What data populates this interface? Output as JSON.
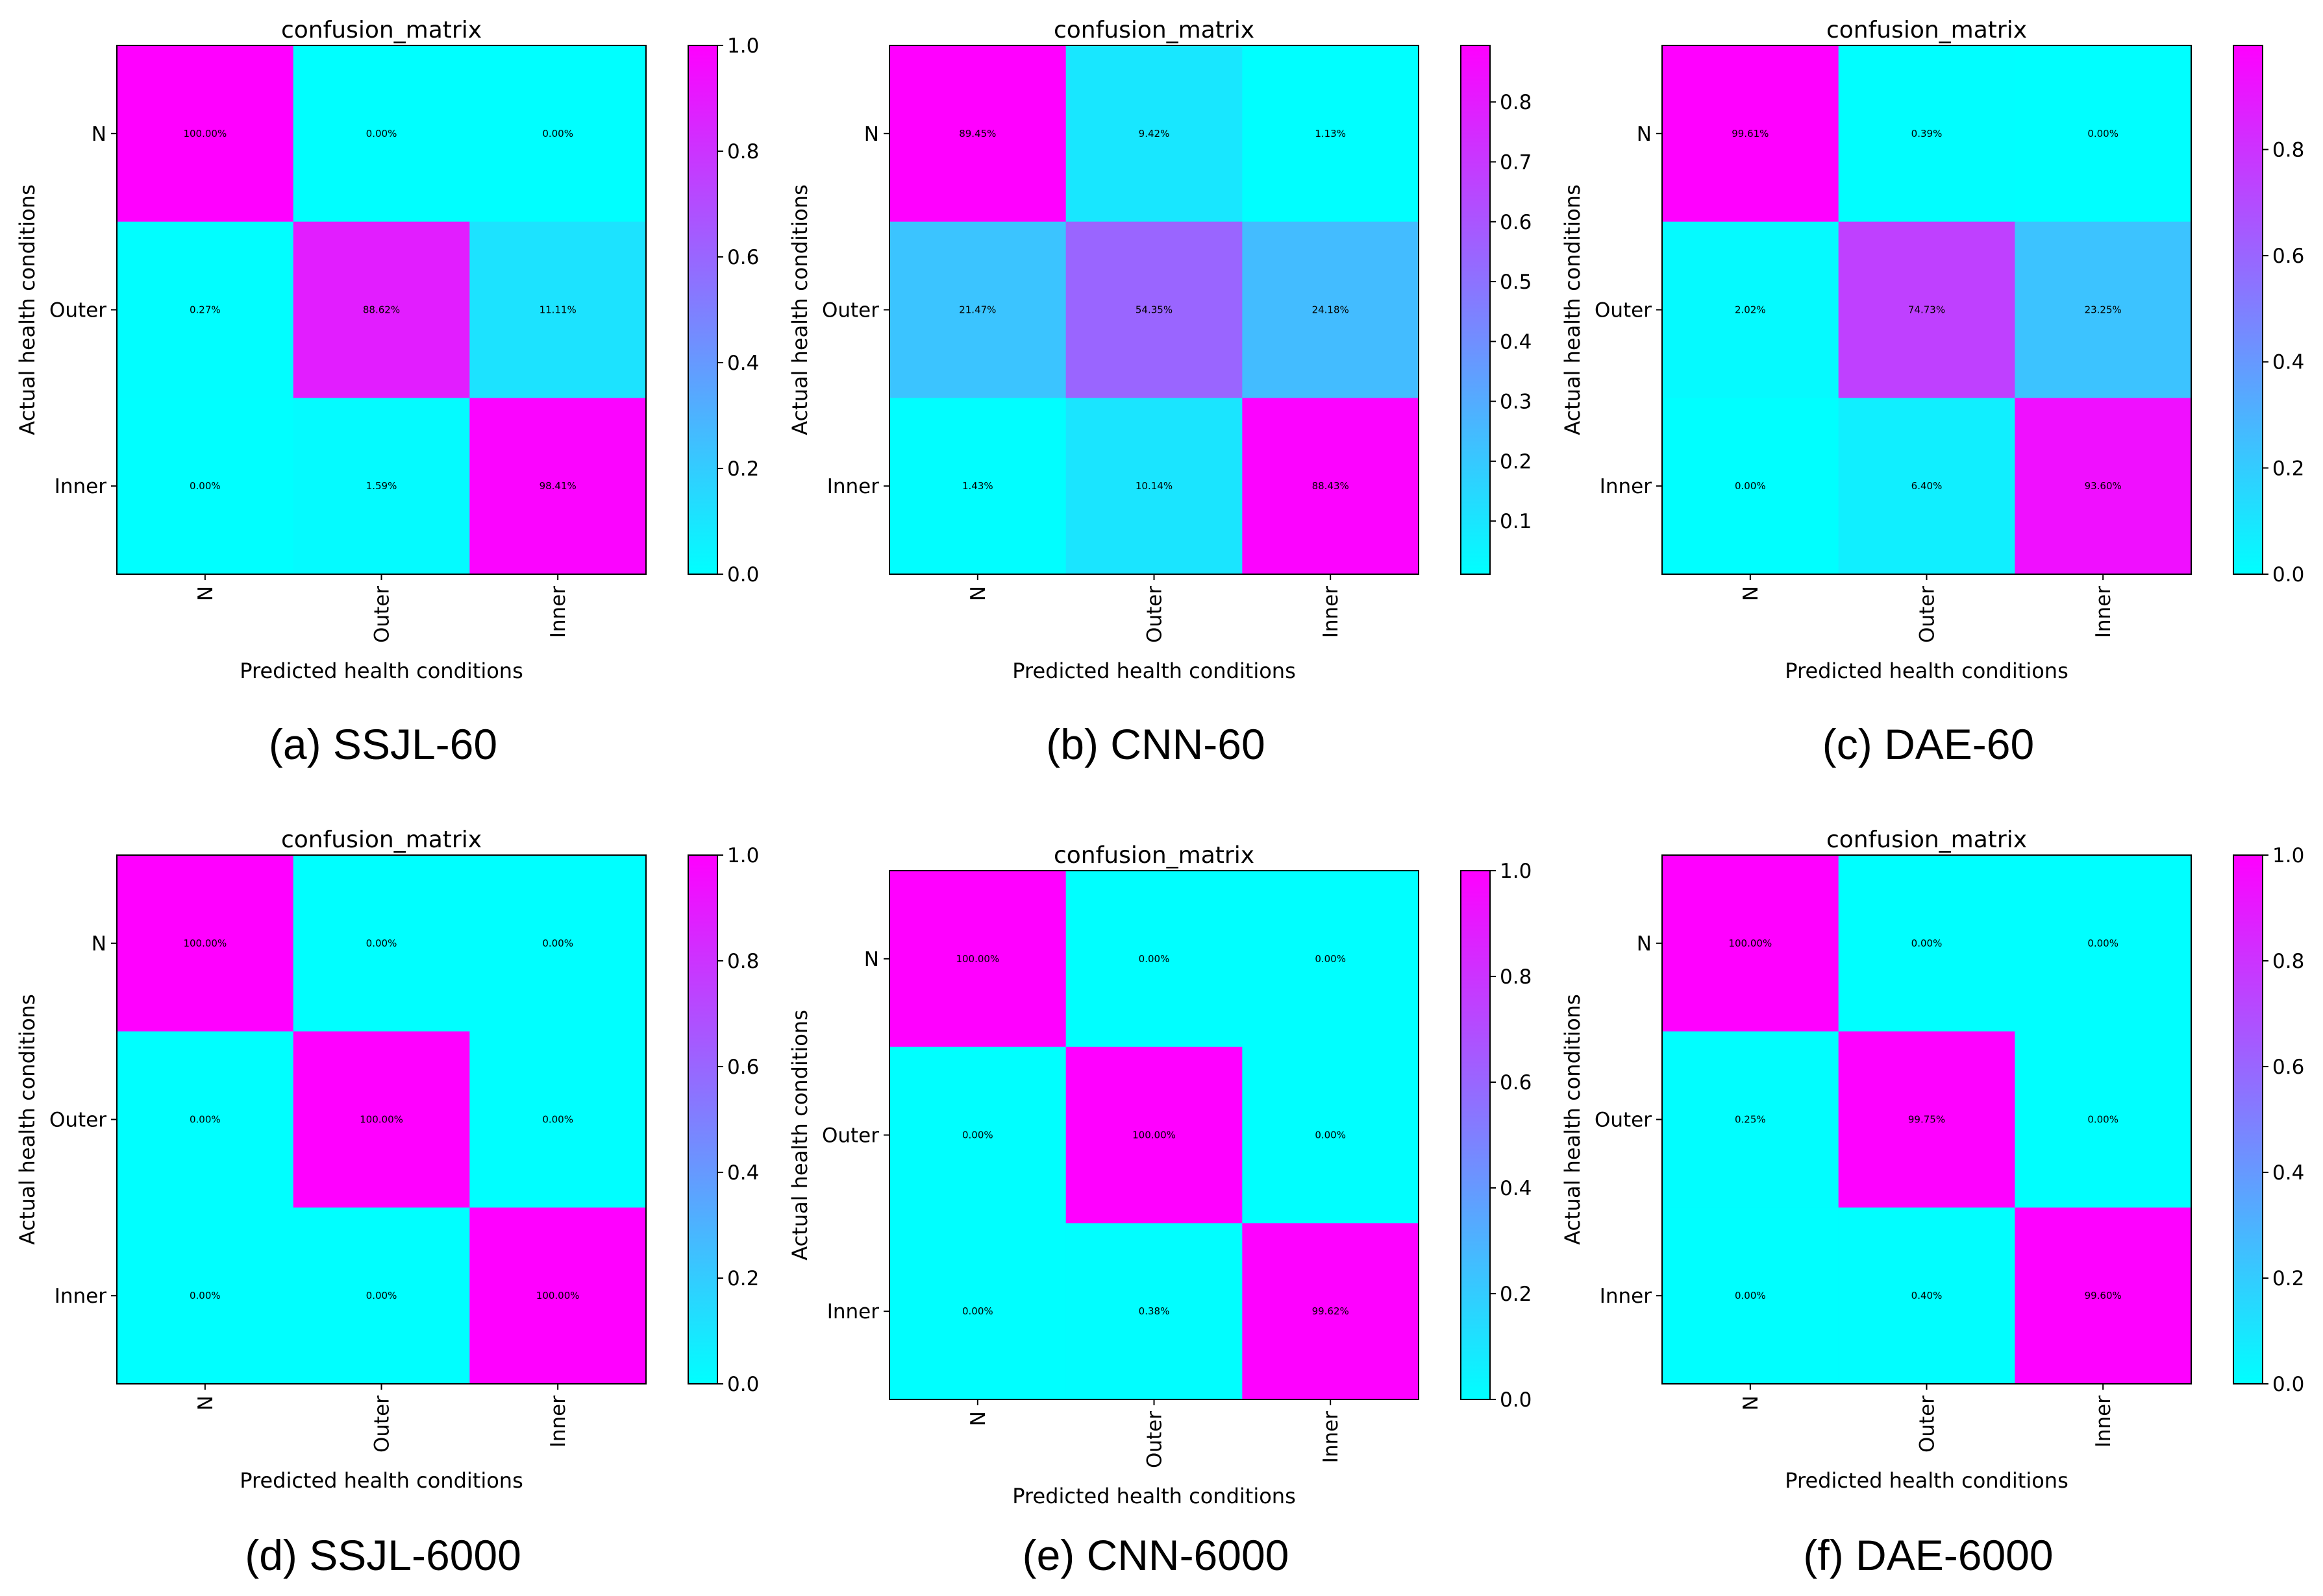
{
  "chart_data": [
    {
      "type": "heatmap",
      "title": "confusion_matrix",
      "caption": "(a) SSJL-60",
      "xlabel": "Predicted health conditions",
      "ylabel": "Actual health conditions",
      "rows": [
        "N",
        "Outer",
        "Inner"
      ],
      "cols": [
        "N",
        "Outer",
        "Inner"
      ],
      "values": [
        [
          1.0,
          0.0,
          0.0
        ],
        [
          0.0027,
          0.8862,
          0.1111
        ],
        [
          0.0,
          0.0159,
          0.9841
        ]
      ],
      "labels": [
        [
          "100.00%",
          "0.00%",
          "0.00%"
        ],
        [
          "0.27%",
          "88.62%",
          "11.11%"
        ],
        [
          "0.00%",
          "1.59%",
          "98.41%"
        ]
      ],
      "colorbar": {
        "range": [
          0.0,
          1.0
        ],
        "ticks": [
          "0.0",
          "0.2",
          "0.4",
          "0.6",
          "0.8",
          "1.0"
        ]
      }
    },
    {
      "type": "heatmap",
      "title": "confusion_matrix",
      "caption": "(b) CNN-60",
      "xlabel": "Predicted health conditions",
      "ylabel": "Actual health conditions",
      "rows": [
        "N",
        "Outer",
        "Inner"
      ],
      "cols": [
        "N",
        "Outer",
        "Inner"
      ],
      "values": [
        [
          0.8945,
          0.0942,
          0.0113
        ],
        [
          0.2147,
          0.5435,
          0.2418
        ],
        [
          0.0143,
          0.1014,
          0.8843
        ]
      ],
      "labels": [
        [
          "89.45%",
          "9.42%",
          "1.13%"
        ],
        [
          "21.47%",
          "54.35%",
          "24.18%"
        ],
        [
          "1.43%",
          "10.14%",
          "88.43%"
        ]
      ],
      "colorbar": {
        "range": [
          0.0113,
          0.8945
        ],
        "ticks": [
          "0.1",
          "0.2",
          "0.3",
          "0.4",
          "0.5",
          "0.6",
          "0.7",
          "0.8"
        ]
      }
    },
    {
      "type": "heatmap",
      "title": "confusion_matrix",
      "caption": "(c) DAE-60",
      "xlabel": "Predicted health conditions",
      "ylabel": "Actual health conditions",
      "rows": [
        "N",
        "Outer",
        "Inner"
      ],
      "cols": [
        "N",
        "Outer",
        "Inner"
      ],
      "values": [
        [
          0.9961,
          0.0039,
          0.0
        ],
        [
          0.0202,
          0.7473,
          0.2325
        ],
        [
          0.0,
          0.064,
          0.936
        ]
      ],
      "labels": [
        [
          "99.61%",
          "0.39%",
          "0.00%"
        ],
        [
          "2.02%",
          "74.73%",
          "23.25%"
        ],
        [
          "0.00%",
          "6.40%",
          "93.60%"
        ]
      ],
      "colorbar": {
        "range": [
          0.0,
          0.9961
        ],
        "ticks": [
          "0.0",
          "0.2",
          "0.4",
          "0.6",
          "0.8"
        ]
      }
    },
    {
      "type": "heatmap",
      "title": "confusion_matrix",
      "caption": "(d) SSJL-6000",
      "xlabel": "Predicted health conditions",
      "ylabel": "Actual health conditions",
      "rows": [
        "N",
        "Outer",
        "Inner"
      ],
      "cols": [
        "N",
        "Outer",
        "Inner"
      ],
      "values": [
        [
          1.0,
          0.0,
          0.0
        ],
        [
          0.0,
          1.0,
          0.0
        ],
        [
          0.0,
          0.0,
          1.0
        ]
      ],
      "labels": [
        [
          "100.00%",
          "0.00%",
          "0.00%"
        ],
        [
          "0.00%",
          "100.00%",
          "0.00%"
        ],
        [
          "0.00%",
          "0.00%",
          "100.00%"
        ]
      ],
      "colorbar": {
        "range": [
          0.0,
          1.0
        ],
        "ticks": [
          "0.0",
          "0.2",
          "0.4",
          "0.6",
          "0.8",
          "1.0"
        ]
      }
    },
    {
      "type": "heatmap",
      "title": "confusion_matrix",
      "caption": "(e) CNN-6000",
      "xlabel": "Predicted health conditions",
      "ylabel": "Actual health conditions",
      "rows": [
        "N",
        "Outer",
        "Inner"
      ],
      "cols": [
        "N",
        "Outer",
        "Inner"
      ],
      "values": [
        [
          1.0,
          0.0,
          0.0
        ],
        [
          0.0,
          1.0,
          0.0
        ],
        [
          0.0,
          0.0038,
          0.9962
        ]
      ],
      "labels": [
        [
          "100.00%",
          "0.00%",
          "0.00%"
        ],
        [
          "0.00%",
          "100.00%",
          "0.00%"
        ],
        [
          "0.00%",
          "0.38%",
          "99.62%"
        ]
      ],
      "colorbar": {
        "range": [
          0.0,
          1.0
        ],
        "ticks": [
          "0.0",
          "0.2",
          "0.4",
          "0.6",
          "0.8",
          "1.0"
        ]
      }
    },
    {
      "type": "heatmap",
      "title": "confusion_matrix",
      "caption": "(f) DAE-6000",
      "xlabel": "Predicted health conditions",
      "ylabel": "Actual health conditions",
      "rows": [
        "N",
        "Outer",
        "Inner"
      ],
      "cols": [
        "N",
        "Outer",
        "Inner"
      ],
      "values": [
        [
          1.0,
          0.0,
          0.0
        ],
        [
          0.0025,
          0.9975,
          0.0
        ],
        [
          0.0,
          0.004,
          0.996
        ]
      ],
      "labels": [
        [
          "100.00%",
          "0.00%",
          "0.00%"
        ],
        [
          "0.25%",
          "99.75%",
          "0.00%"
        ],
        [
          "0.00%",
          "0.40%",
          "99.60%"
        ]
      ],
      "colorbar": {
        "range": [
          0.0,
          1.0
        ],
        "ticks": [
          "0.0",
          "0.2",
          "0.4",
          "0.6",
          "0.8",
          "1.0"
        ]
      }
    }
  ]
}
